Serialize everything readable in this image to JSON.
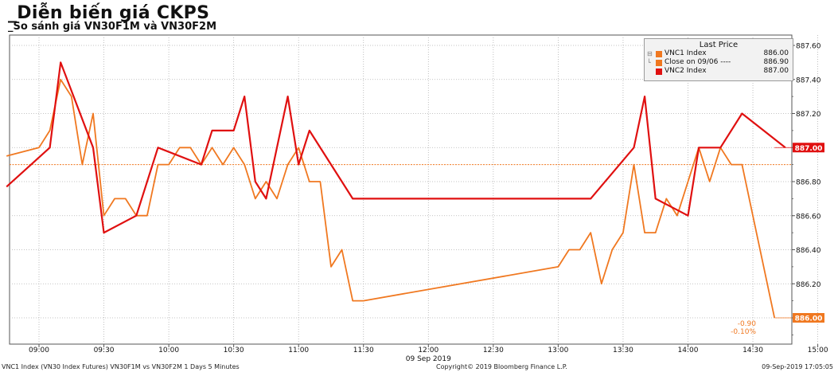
{
  "title": "_Diễn biến giá CKPS",
  "subtitle": "_So sánh giá VN30F1M và VN30F2M",
  "legend": {
    "title": "Last Price",
    "items": [
      {
        "name": "VNC1 Index",
        "value": "886.00",
        "color": "#f07820"
      },
      {
        "name": "Close on 09/06 ----",
        "value": "886.90",
        "color": "#f07820"
      },
      {
        "name": "VNC2 Index",
        "value": "887.00",
        "color": "#e01010"
      }
    ]
  },
  "footer": {
    "left": "VNC1 Index (VN30 Index Futures) VN30F1M vs VN30F2M 1 Days 5 Minutes",
    "center": "Copyright© 2019 Bloomberg Finance L.P.",
    "right": "09-Sep-2019 17:05:05"
  },
  "chart_data": {
    "type": "line",
    "date_label": "09 Sep 2019",
    "x_ticks": [
      "09:00",
      "09:30",
      "10:00",
      "10:30",
      "11:00",
      "11:30",
      "12:00",
      "12:30",
      "13:00",
      "13:30",
      "14:00",
      "14:30",
      "15:00"
    ],
    "y_ticks": [
      "887.60",
      "887.40",
      "887.20",
      "887.00",
      "886.80",
      "886.60",
      "886.40",
      "886.20",
      "886.00"
    ],
    "ylim": [
      885.85,
      887.65
    ],
    "grid": true,
    "legend_position": "top-right",
    "close_line": {
      "name": "Close on 09/06",
      "value": 886.9,
      "color": "#f07820"
    },
    "price_labels": [
      {
        "text": "887.00",
        "value": 887.0,
        "color": "#e01010"
      },
      {
        "text": "886.00",
        "value": 886.0,
        "color": "#f07820"
      }
    ],
    "change_labels": [
      "-0.90",
      "-0.10%"
    ],
    "series": [
      {
        "name": "VNC1 Index",
        "color": "#f07820",
        "points": [
          [
            "08:45",
            886.95
          ],
          [
            "09:00",
            887.0
          ],
          [
            "09:05",
            887.1
          ],
          [
            "09:10",
            887.4
          ],
          [
            "09:15",
            887.3
          ],
          [
            "09:20",
            886.9
          ],
          [
            "09:25",
            887.2
          ],
          [
            "09:30",
            886.6
          ],
          [
            "09:35",
            886.7
          ],
          [
            "09:40",
            886.7
          ],
          [
            "09:45",
            886.6
          ],
          [
            "09:50",
            886.6
          ],
          [
            "09:55",
            886.9
          ],
          [
            "10:00",
            886.9
          ],
          [
            "10:05",
            887.0
          ],
          [
            "10:10",
            887.0
          ],
          [
            "10:15",
            886.9
          ],
          [
            "10:20",
            887.0
          ],
          [
            "10:25",
            886.9
          ],
          [
            "10:30",
            887.0
          ],
          [
            "10:35",
            886.9
          ],
          [
            "10:40",
            886.7
          ],
          [
            "10:45",
            886.8
          ],
          [
            "10:50",
            886.7
          ],
          [
            "10:55",
            886.9
          ],
          [
            "11:00",
            887.0
          ],
          [
            "11:05",
            886.8
          ],
          [
            "11:10",
            886.8
          ],
          [
            "11:15",
            886.3
          ],
          [
            "11:20",
            886.4
          ],
          [
            "11:25",
            886.1
          ],
          [
            "11:30",
            886.1
          ],
          [
            "13:00",
            886.3
          ],
          [
            "13:05",
            886.4
          ],
          [
            "13:10",
            886.4
          ],
          [
            "13:15",
            886.5
          ],
          [
            "13:20",
            886.2
          ],
          [
            "13:25",
            886.4
          ],
          [
            "13:30",
            886.5
          ],
          [
            "13:35",
            886.9
          ],
          [
            "13:40",
            886.5
          ],
          [
            "13:45",
            886.5
          ],
          [
            "13:50",
            886.7
          ],
          [
            "13:55",
            886.6
          ],
          [
            "14:00",
            886.8
          ],
          [
            "14:05",
            887.0
          ],
          [
            "14:10",
            886.8
          ],
          [
            "14:15",
            887.0
          ],
          [
            "14:20",
            886.9
          ],
          [
            "14:25",
            886.9
          ],
          [
            "14:40",
            886.0
          ]
        ]
      },
      {
        "name": "VNC2 Index",
        "color": "#e01010",
        "points": [
          [
            "08:45",
            886.77
          ],
          [
            "09:05",
            887.0
          ],
          [
            "09:10",
            887.5
          ],
          [
            "09:25",
            887.0
          ],
          [
            "09:30",
            886.5
          ],
          [
            "09:45",
            886.6
          ],
          [
            "09:55",
            887.0
          ],
          [
            "10:15",
            886.9
          ],
          [
            "10:20",
            887.1
          ],
          [
            "10:30",
            887.1
          ],
          [
            "10:35",
            887.3
          ],
          [
            "10:40",
            886.8
          ],
          [
            "10:45",
            886.7
          ],
          [
            "10:55",
            887.3
          ],
          [
            "11:00",
            886.9
          ],
          [
            "11:05",
            887.1
          ],
          [
            "11:25",
            886.7
          ],
          [
            "11:30",
            886.7
          ],
          [
            "13:15",
            886.7
          ],
          [
            "13:35",
            887.0
          ],
          [
            "13:40",
            887.3
          ],
          [
            "13:45",
            886.7
          ],
          [
            "14:00",
            886.6
          ],
          [
            "14:05",
            887.0
          ],
          [
            "14:15",
            887.0
          ],
          [
            "14:25",
            887.2
          ],
          [
            "14:45",
            887.0
          ]
        ]
      }
    ]
  }
}
